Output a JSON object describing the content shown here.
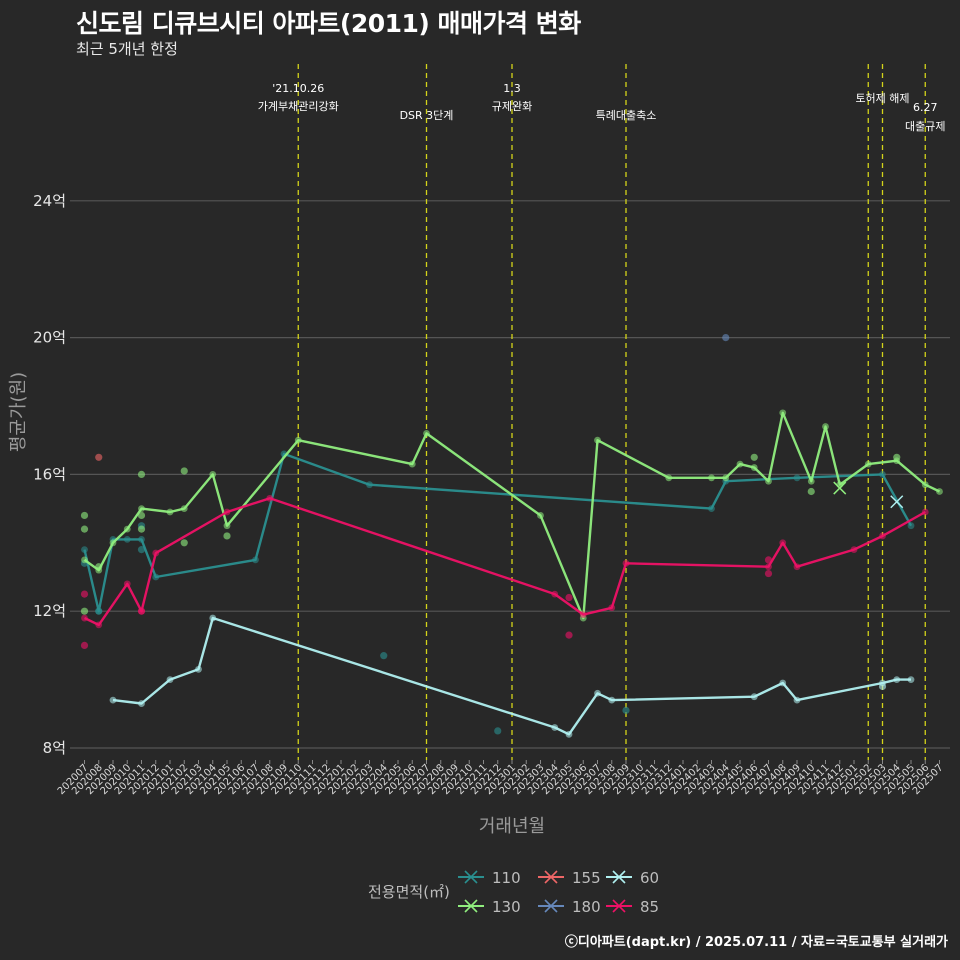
{
  "header": {
    "title": "신도림 디큐브시티 아파트(2011) 매매가격 변화",
    "subtitle": "최근 5개년 한정"
  },
  "caption": "ⓒ디아파트(dapt.kr) / 2025.07.11 / 자료=국토교통부 실거래가",
  "colors": {
    "background": "#282828",
    "grid": "#555555",
    "event_line": "#d4d41a"
  },
  "chart_data": {
    "type": "line",
    "xlabel": "거래년월",
    "ylabel": "평균가(원)",
    "ylim": [
      7.6,
      28
    ],
    "yticks": [
      {
        "value": 8,
        "label": "8억"
      },
      {
        "value": 12,
        "label": "12억"
      },
      {
        "value": 16,
        "label": "16억"
      },
      {
        "value": 20,
        "label": "20억"
      },
      {
        "value": 24,
        "label": "24억"
      }
    ],
    "x_categories": [
      "202007",
      "202008",
      "202009",
      "202010",
      "202011",
      "202012",
      "202101",
      "202102",
      "202103",
      "202104",
      "202105",
      "202106",
      "202107",
      "202108",
      "202109",
      "202110",
      "202111",
      "202112",
      "202201",
      "202202",
      "202203",
      "202204",
      "202205",
      "202206",
      "202207",
      "202208",
      "202209",
      "202210",
      "202211",
      "202212",
      "202301",
      "202302",
      "202303",
      "202304",
      "202305",
      "202306",
      "202307",
      "202308",
      "202309",
      "202310",
      "202311",
      "202312",
      "202401",
      "202402",
      "202403",
      "202404",
      "202405",
      "202406",
      "202407",
      "202408",
      "202409",
      "202410",
      "202411",
      "202412",
      "202501",
      "202502",
      "202503",
      "202504",
      "202505",
      "202506",
      "202507"
    ],
    "events": [
      {
        "month": "202110",
        "label": "'21.10.26\n가계부채관리강화",
        "level": 0
      },
      {
        "month": "202207",
        "label": "DSR 3단계",
        "level": 1
      },
      {
        "month": "202301",
        "label": "1.3\n규제완화",
        "level": 0
      },
      {
        "month": "202309",
        "label": "특례대출축소",
        "level": 1
      },
      {
        "month": "202502",
        "label": "",
        "level": 0
      },
      {
        "month": "202503",
        "label": "토허제 해제",
        "level": 0
      },
      {
        "month": "202506",
        "label": "6.27\n대출규제",
        "level": 2
      }
    ],
    "legend_title": "전용면적(㎡)",
    "series": [
      {
        "name": "110",
        "color": "#2a8f8f",
        "line": [
          [
            "202007",
            13.8
          ],
          [
            "202008",
            12.0
          ],
          [
            "202009",
            14.1
          ],
          [
            "202010",
            14.1
          ],
          [
            "202011",
            14.1
          ],
          [
            "202012",
            13.0
          ],
          [
            "202107",
            13.5
          ],
          [
            "202109",
            16.6
          ],
          [
            "202203",
            15.7
          ],
          [
            "202403",
            15.0
          ],
          [
            "202404",
            15.8
          ],
          [
            "202409",
            15.9
          ],
          [
            "202503",
            16.0
          ],
          [
            "202505",
            14.5
          ]
        ],
        "points": [
          [
            "202007",
            13.4
          ],
          [
            "202008",
            12.0
          ],
          [
            "202011",
            13.8
          ],
          [
            "202011",
            14.5
          ],
          [
            "202204",
            10.7
          ],
          [
            "202212",
            8.5
          ],
          [
            "202309",
            9.1
          ]
        ]
      },
      {
        "name": "130",
        "color": "#90ee7e",
        "line": [
          [
            "202007",
            13.5
          ],
          [
            "202008",
            13.2
          ],
          [
            "202009",
            14.0
          ],
          [
            "202010",
            14.4
          ],
          [
            "202011",
            15.0
          ],
          [
            "202101",
            14.9
          ],
          [
            "202102",
            15.0
          ],
          [
            "202104",
            16.0
          ],
          [
            "202105",
            14.5
          ],
          [
            "202110",
            17.0
          ],
          [
            "202206",
            16.3
          ],
          [
            "202207",
            17.2
          ],
          [
            "202303",
            14.8
          ],
          [
            "202306",
            11.8
          ],
          [
            "202307",
            17.0
          ],
          [
            "202312",
            15.9
          ],
          [
            "202403",
            15.9
          ],
          [
            "202404",
            15.9
          ],
          [
            "202405",
            16.3
          ],
          [
            "202406",
            16.2
          ],
          [
            "202407",
            15.8
          ],
          [
            "202408",
            17.8
          ],
          [
            "202410",
            15.8
          ],
          [
            "202411",
            17.4
          ],
          [
            "202412",
            15.7
          ],
          [
            "202502",
            16.3
          ],
          [
            "202504",
            16.4
          ],
          [
            "202506",
            15.7
          ],
          [
            "202507",
            15.5
          ]
        ],
        "points": [
          [
            "202007",
            14.8
          ],
          [
            "202007",
            14.4
          ],
          [
            "202007",
            12.0
          ],
          [
            "202008",
            13.3
          ],
          [
            "202011",
            16.0
          ],
          [
            "202011",
            14.4
          ],
          [
            "202011",
            14.8
          ],
          [
            "202102",
            16.1
          ],
          [
            "202102",
            14.0
          ],
          [
            "202105",
            14.2
          ],
          [
            "202406",
            16.5
          ],
          [
            "202410",
            15.5
          ],
          [
            "202504",
            16.5
          ]
        ]
      },
      {
        "name": "155",
        "color": "#ee6666",
        "line": [],
        "points": [
          [
            "202008",
            16.5
          ]
        ]
      },
      {
        "name": "180",
        "color": "#6688bb",
        "line": [],
        "points": [
          [
            "202404",
            20.0
          ]
        ]
      },
      {
        "name": "60",
        "color": "#b0f0f0",
        "line": [
          [
            "202009",
            9.4
          ],
          [
            "202011",
            9.3
          ],
          [
            "202101",
            10.0
          ],
          [
            "202103",
            10.3
          ],
          [
            "202104",
            11.8
          ],
          [
            "202304",
            8.6
          ],
          [
            "202305",
            8.4
          ],
          [
            "202307",
            9.6
          ],
          [
            "202308",
            9.4
          ],
          [
            "202406",
            9.5
          ],
          [
            "202408",
            9.9
          ],
          [
            "202409",
            9.4
          ],
          [
            "202503",
            9.9
          ],
          [
            "202504",
            10.0
          ],
          [
            "202505",
            10.0
          ]
        ],
        "points": [
          [
            "202503",
            9.8
          ]
        ]
      },
      {
        "name": "85",
        "color": "#ee1166",
        "line": [
          [
            "202007",
            11.8
          ],
          [
            "202008",
            11.6
          ],
          [
            "202010",
            12.8
          ],
          [
            "202011",
            12.0
          ],
          [
            "202012",
            13.7
          ],
          [
            "202105",
            14.9
          ],
          [
            "202108",
            15.3
          ],
          [
            "202304",
            12.5
          ],
          [
            "202306",
            11.9
          ],
          [
            "202308",
            12.1
          ],
          [
            "202309",
            13.4
          ],
          [
            "202407",
            13.3
          ],
          [
            "202408",
            14.0
          ],
          [
            "202409",
            13.3
          ],
          [
            "202501",
            13.8
          ],
          [
            "202503",
            14.2
          ],
          [
            "202506",
            14.9
          ]
        ],
        "points": [
          [
            "202007",
            11.0
          ],
          [
            "202007",
            12.5
          ],
          [
            "202011",
            12.0
          ],
          [
            "202305",
            11.3
          ],
          [
            "202305",
            12.4
          ],
          [
            "202407",
            13.1
          ],
          [
            "202407",
            13.5
          ]
        ]
      }
    ],
    "cross_markers": [
      {
        "series": "130",
        "month": "202412",
        "value": 15.6
      },
      {
        "series": "60",
        "month": "202504",
        "value": 15.2
      }
    ]
  }
}
